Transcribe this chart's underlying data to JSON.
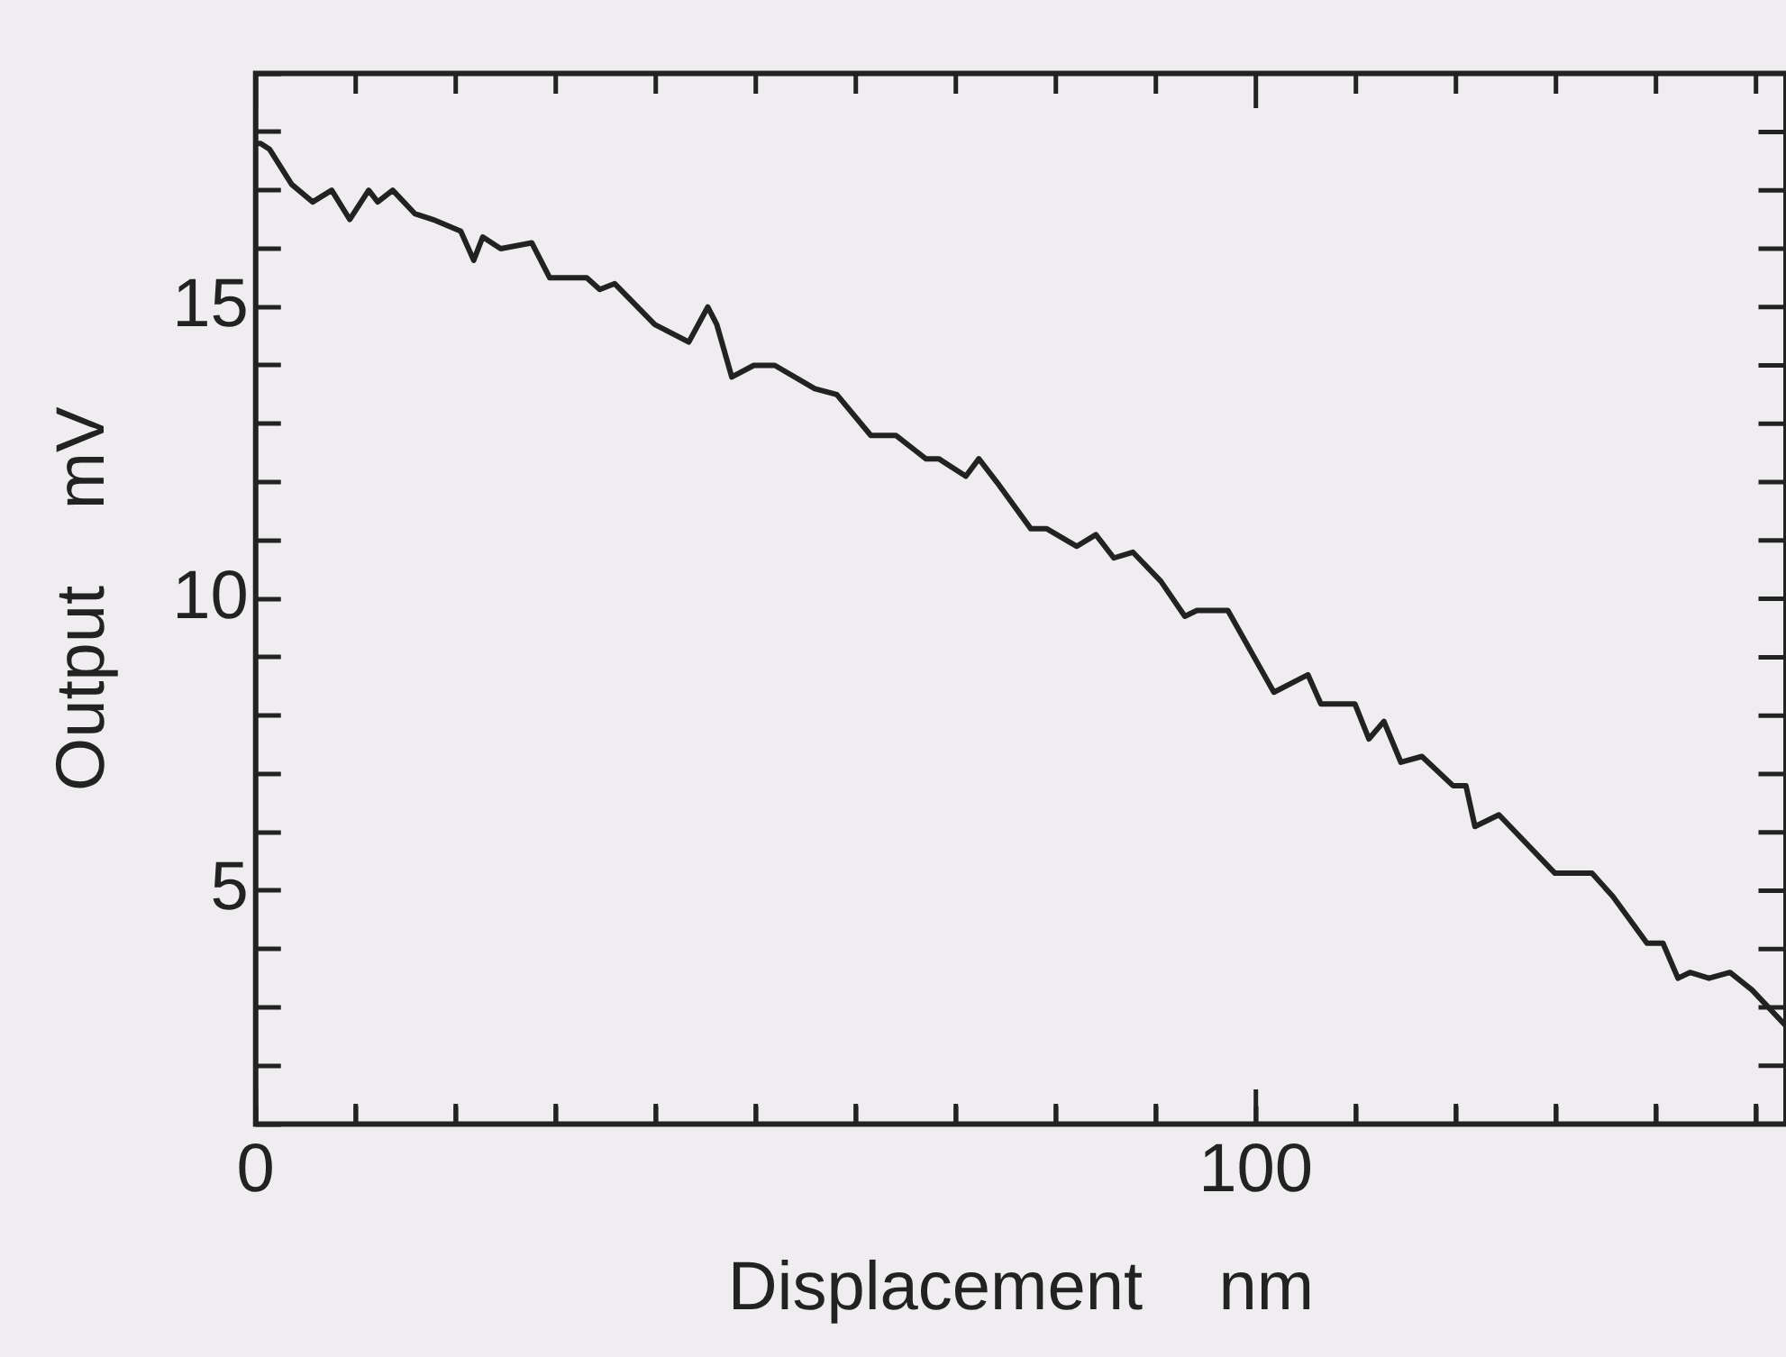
{
  "chart_data": {
    "type": "line",
    "xlabel": "Displacement    nm",
    "ylabel": "Output    mV",
    "grid": false,
    "legend": false,
    "marker": "none",
    "line_style": "solid",
    "xlim": [
      0,
      153
    ],
    "ylim": [
      1,
      19
    ],
    "xticks": [
      0,
      {
        "value": 10,
        "label": null
      },
      {
        "value": 20,
        "label": null
      },
      {
        "value": 30,
        "label": null
      },
      {
        "value": 40,
        "label": null
      },
      {
        "value": 50,
        "label": null
      },
      {
        "value": 60,
        "label": null
      },
      {
        "value": 70,
        "label": null
      },
      {
        "value": 80,
        "label": null
      },
      {
        "value": 90,
        "label": null
      },
      100,
      {
        "value": 110,
        "label": null
      },
      {
        "value": 120,
        "label": null
      },
      {
        "value": 130,
        "label": null
      },
      {
        "value": 140,
        "label": null
      },
      {
        "value": 150,
        "label": null
      }
    ],
    "yticks": [
      {
        "value": 1,
        "label": null
      },
      {
        "value": 2,
        "label": null
      },
      {
        "value": 3,
        "label": null
      },
      {
        "value": 4,
        "label": null
      },
      5,
      {
        "value": 6,
        "label": null
      },
      {
        "value": 7,
        "label": null
      },
      {
        "value": 8,
        "label": null
      },
      {
        "value": 9,
        "label": null
      },
      10,
      {
        "value": 11,
        "label": null
      },
      {
        "value": 12,
        "label": null
      },
      {
        "value": 13,
        "label": null
      },
      {
        "value": 14,
        "label": null
      },
      15,
      {
        "value": 16,
        "label": null
      },
      {
        "value": 17,
        "label": null
      },
      {
        "value": 18,
        "label": null
      },
      {
        "value": 19,
        "label": null
      }
    ],
    "series": [
      {
        "color": "#222222",
        "x": [
          0,
          0.5,
          1.4,
          3.6,
          5.7,
          7.6,
          9.4,
          11.3,
          12.2,
          13.7,
          15.9,
          17.7,
          20.5,
          21.8,
          22.7,
          24.5,
          27.6,
          29.4,
          33.1,
          34.4,
          35.9,
          39.9,
          43.3,
          45.2,
          46.1,
          47.6,
          49.8,
          51.9,
          55.9,
          58.1,
          61.5,
          64,
          67,
          68.3,
          71,
          72.3,
          74.1,
          77.5,
          79.1,
          82.1,
          84,
          85.8,
          87.7,
          90.5,
          92.9,
          94.1,
          97.2,
          101.8,
          105.2,
          106.5,
          109.9,
          111.3,
          112.8,
          114.5,
          116.6,
          119.7,
          121,
          121.9,
          124.3,
          129.9,
          133.6,
          135.7,
          139.1,
          140.7,
          142.2,
          143.4,
          145.3,
          147.4,
          149.6,
          152.9
        ],
        "values": [
          17.8,
          17.8,
          17.7,
          17.1,
          16.8,
          17.0,
          16.5,
          17.0,
          16.8,
          17.0,
          16.6,
          16.5,
          16.3,
          15.8,
          16.2,
          16.0,
          16.1,
          15.5,
          15.5,
          15.3,
          15.4,
          14.7,
          14.4,
          15.0,
          14.7,
          13.8,
          14.0,
          14.0,
          13.6,
          13.5,
          12.8,
          12.8,
          12.4,
          12.4,
          12.1,
          12.4,
          12.0,
          11.2,
          11.2,
          10.9,
          11.1,
          10.7,
          10.8,
          10.3,
          9.7,
          9.8,
          9.8,
          8.4,
          8.7,
          8.2,
          8.2,
          7.6,
          7.9,
          7.2,
          7.3,
          6.8,
          6.8,
          6.1,
          6.3,
          5.3,
          5.3,
          4.9,
          4.1,
          4.1,
          3.5,
          3.6,
          3.5,
          3.6,
          3.3,
          2.7
        ]
      }
    ]
  }
}
